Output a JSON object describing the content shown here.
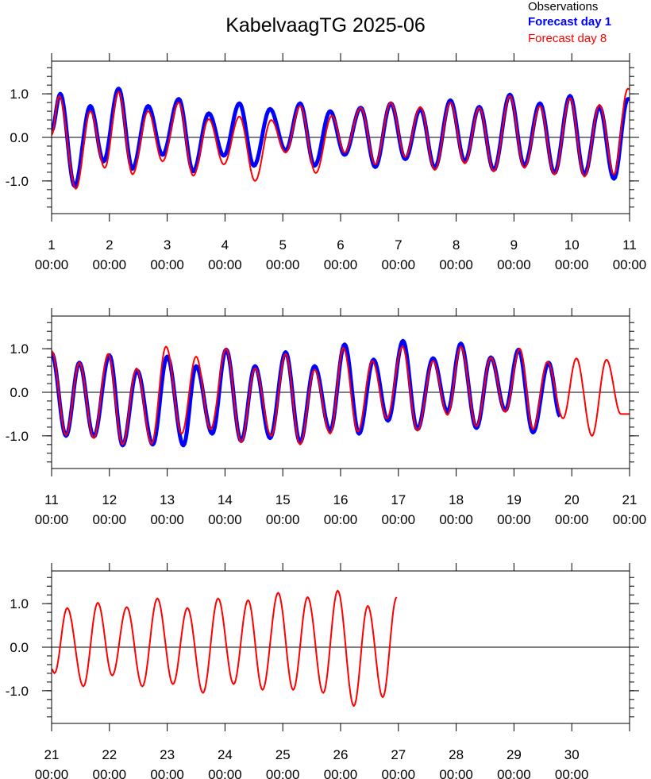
{
  "title": "KabelvaagTG 2025-06",
  "legend": [
    {
      "label": "Observations",
      "color": "#000000",
      "bold": false
    },
    {
      "label": "Forecast day 1",
      "color": "#0000ff",
      "bold": true
    },
    {
      "label": "Forecast day 8",
      "color": "#ff0000",
      "bold": false
    }
  ],
  "colors": {
    "observations": "#000000",
    "forecast_day1": "#0000ff",
    "forecast_day8": "#ff0000"
  },
  "chart_data": [
    {
      "type": "line",
      "x_unit": "day of month",
      "xlim": [
        1,
        11
      ],
      "ylim": [
        -1.75,
        1.75
      ],
      "yticks": [
        -1.0,
        0.0,
        1.0
      ],
      "ytick_labels": [
        "-1.0",
        "0.0",
        "1.0"
      ],
      "xtick_labels": [
        {
          "day": "1",
          "time": "00:00"
        },
        {
          "day": "2",
          "time": "00:00"
        },
        {
          "day": "3",
          "time": "00:00"
        },
        {
          "day": "4",
          "time": "00:00"
        },
        {
          "day": "5",
          "time": "00:00"
        },
        {
          "day": "6",
          "time": "00:00"
        },
        {
          "day": "7",
          "time": "00:00"
        },
        {
          "day": "8",
          "time": "00:00"
        },
        {
          "day": "9",
          "time": "00:00"
        },
        {
          "day": "10",
          "time": "00:00"
        },
        {
          "day": "11",
          "time": "00:00"
        }
      ],
      "series": [
        {
          "key": "forecast_day1",
          "peaks": [
            [
              1.0,
              0.15
            ],
            [
              1.15,
              1.0
            ],
            [
              1.4,
              -1.12
            ],
            [
              1.67,
              0.72
            ],
            [
              1.9,
              -0.55
            ],
            [
              2.16,
              1.12
            ],
            [
              2.4,
              -0.72
            ],
            [
              2.67,
              0.72
            ],
            [
              2.92,
              -0.4
            ],
            [
              3.2,
              0.88
            ],
            [
              3.45,
              -0.78
            ],
            [
              3.72,
              0.55
            ],
            [
              3.98,
              -0.42
            ],
            [
              4.25,
              0.78
            ],
            [
              4.5,
              -0.65
            ],
            [
              4.78,
              0.65
            ],
            [
              5.05,
              -0.3
            ],
            [
              5.3,
              0.78
            ],
            [
              5.55,
              -0.65
            ],
            [
              5.82,
              0.6
            ],
            [
              6.07,
              -0.4
            ],
            [
              6.35,
              0.68
            ],
            [
              6.6,
              -0.68
            ],
            [
              6.87,
              0.78
            ],
            [
              7.12,
              -0.5
            ],
            [
              7.38,
              0.65
            ],
            [
              7.63,
              -0.7
            ],
            [
              7.9,
              0.85
            ],
            [
              8.15,
              -0.55
            ],
            [
              8.4,
              0.7
            ],
            [
              8.65,
              -0.75
            ],
            [
              8.93,
              0.98
            ],
            [
              9.18,
              -0.65
            ],
            [
              9.45,
              0.78
            ],
            [
              9.7,
              -0.82
            ],
            [
              9.97,
              0.95
            ],
            [
              10.22,
              -0.85
            ],
            [
              10.48,
              0.7
            ],
            [
              10.73,
              -0.95
            ],
            [
              10.97,
              0.88
            ],
            [
              11.0,
              0.88
            ]
          ]
        },
        {
          "key": "forecast_day8",
          "peaks": [
            [
              1.0,
              0.05
            ],
            [
              1.13,
              0.95
            ],
            [
              1.42,
              -1.18
            ],
            [
              1.67,
              0.6
            ],
            [
              1.92,
              -0.7
            ],
            [
              2.16,
              1.05
            ],
            [
              2.4,
              -0.85
            ],
            [
              2.67,
              0.6
            ],
            [
              2.92,
              -0.55
            ],
            [
              3.2,
              0.8
            ],
            [
              3.45,
              -0.88
            ],
            [
              3.72,
              0.42
            ],
            [
              3.98,
              -0.62
            ],
            [
              4.25,
              0.48
            ],
            [
              4.52,
              -1.0
            ],
            [
              4.8,
              0.4
            ],
            [
              5.05,
              -0.35
            ],
            [
              5.3,
              0.72
            ],
            [
              5.57,
              -0.82
            ],
            [
              5.85,
              0.5
            ],
            [
              6.07,
              -0.35
            ],
            [
              6.35,
              0.68
            ],
            [
              6.6,
              -0.62
            ],
            [
              6.87,
              0.8
            ],
            [
              7.12,
              -0.45
            ],
            [
              7.38,
              0.7
            ],
            [
              7.63,
              -0.75
            ],
            [
              7.9,
              0.8
            ],
            [
              8.15,
              -0.6
            ],
            [
              8.4,
              0.68
            ],
            [
              8.65,
              -0.78
            ],
            [
              8.93,
              0.95
            ],
            [
              9.18,
              -0.7
            ],
            [
              9.45,
              0.72
            ],
            [
              9.7,
              -0.85
            ],
            [
              9.97,
              0.9
            ],
            [
              10.22,
              -0.9
            ],
            [
              10.48,
              0.75
            ],
            [
              10.73,
              -0.85
            ],
            [
              10.97,
              1.12
            ],
            [
              11.0,
              1.1
            ]
          ]
        }
      ]
    },
    {
      "type": "line",
      "x_unit": "day of month",
      "xlim": [
        11,
        21
      ],
      "ylim": [
        -1.75,
        1.75
      ],
      "yticks": [
        -1.0,
        0.0,
        1.0
      ],
      "ytick_labels": [
        "-1.0",
        "0.0",
        "1.0"
      ],
      "xtick_labels": [
        {
          "day": "11",
          "time": "00:00"
        },
        {
          "day": "12",
          "time": "00:00"
        },
        {
          "day": "13",
          "time": "00:00"
        },
        {
          "day": "14",
          "time": "00:00"
        },
        {
          "day": "15",
          "time": "00:00"
        },
        {
          "day": "16",
          "time": "00:00"
        },
        {
          "day": "17",
          "time": "00:00"
        },
        {
          "day": "18",
          "time": "00:00"
        },
        {
          "day": "19",
          "time": "00:00"
        },
        {
          "day": "20",
          "time": "00:00"
        },
        {
          "day": "21",
          "time": "00:00"
        }
      ],
      "series": [
        {
          "key": "forecast_day1",
          "peaks": [
            [
              11.0,
              0.9
            ],
            [
              11.25,
              -1.0
            ],
            [
              11.48,
              0.68
            ],
            [
              11.73,
              -1.02
            ],
            [
              12.0,
              0.85
            ],
            [
              12.23,
              -1.22
            ],
            [
              12.48,
              0.5
            ],
            [
              12.75,
              -1.2
            ],
            [
              13.0,
              0.82
            ],
            [
              13.28,
              -1.22
            ],
            [
              13.5,
              0.6
            ],
            [
              13.78,
              -0.95
            ],
            [
              14.02,
              0.98
            ],
            [
              14.28,
              -1.12
            ],
            [
              14.52,
              0.6
            ],
            [
              14.78,
              -1.05
            ],
            [
              15.05,
              0.92
            ],
            [
              15.3,
              -1.15
            ],
            [
              15.55,
              0.6
            ],
            [
              15.82,
              -0.88
            ],
            [
              16.07,
              1.1
            ],
            [
              16.32,
              -0.95
            ],
            [
              16.57,
              0.75
            ],
            [
              16.82,
              -0.65
            ],
            [
              17.08,
              1.18
            ],
            [
              17.33,
              -0.85
            ],
            [
              17.6,
              0.78
            ],
            [
              17.85,
              -0.45
            ],
            [
              18.08,
              1.12
            ],
            [
              18.35,
              -0.82
            ],
            [
              18.6,
              0.8
            ],
            [
              18.85,
              -0.42
            ],
            [
              19.08,
              0.98
            ],
            [
              19.33,
              -0.92
            ],
            [
              19.6,
              0.68
            ],
            [
              19.8,
              -0.55
            ]
          ]
        },
        {
          "key": "forecast_day8",
          "peaks": [
            [
              11.0,
              0.95
            ],
            [
              11.25,
              -0.98
            ],
            [
              11.48,
              0.68
            ],
            [
              11.73,
              -1.05
            ],
            [
              11.98,
              0.88
            ],
            [
              12.23,
              -1.2
            ],
            [
              12.47,
              0.55
            ],
            [
              12.73,
              -1.18
            ],
            [
              12.98,
              1.05
            ],
            [
              13.25,
              -0.95
            ],
            [
              13.5,
              0.82
            ],
            [
              13.75,
              -0.85
            ],
            [
              14.02,
              1.0
            ],
            [
              14.28,
              -1.15
            ],
            [
              14.52,
              0.55
            ],
            [
              14.8,
              -1.0
            ],
            [
              15.05,
              0.88
            ],
            [
              15.3,
              -1.2
            ],
            [
              15.55,
              0.52
            ],
            [
              15.82,
              -0.95
            ],
            [
              16.05,
              1.02
            ],
            [
              16.3,
              -0.9
            ],
            [
              16.55,
              0.72
            ],
            [
              16.8,
              -0.6
            ],
            [
              17.07,
              1.05
            ],
            [
              17.33,
              -0.88
            ],
            [
              17.6,
              0.72
            ],
            [
              17.85,
              -0.52
            ],
            [
              18.08,
              1.05
            ],
            [
              18.35,
              -0.78
            ],
            [
              18.6,
              0.8
            ],
            [
              18.85,
              -0.45
            ],
            [
              19.1,
              1.0
            ],
            [
              19.33,
              -0.85
            ],
            [
              19.58,
              0.7
            ],
            [
              19.85,
              -0.6
            ],
            [
              20.08,
              0.78
            ],
            [
              20.35,
              -1.0
            ],
            [
              20.6,
              0.75
            ],
            [
              20.85,
              -0.5
            ],
            [
              21.0,
              -0.5
            ]
          ]
        }
      ]
    },
    {
      "type": "line",
      "x_unit": "day of month",
      "xlim": [
        21,
        31
      ],
      "ylim": [
        -1.75,
        1.75
      ],
      "yticks": [
        -1.0,
        0.0,
        1.0
      ],
      "ytick_labels": [
        "-1.0",
        "0.0",
        "1.0"
      ],
      "xtick_labels": [
        {
          "day": "21",
          "time": "00:00"
        },
        {
          "day": "22",
          "time": "00:00"
        },
        {
          "day": "23",
          "time": "00:00"
        },
        {
          "day": "24",
          "time": "00:00"
        },
        {
          "day": "25",
          "time": "00:00"
        },
        {
          "day": "26",
          "time": "00:00"
        },
        {
          "day": "27",
          "time": "00:00"
        },
        {
          "day": "28",
          "time": "00:00"
        },
        {
          "day": "29",
          "time": "00:00"
        },
        {
          "day": "30",
          "time": "00:00"
        }
      ],
      "series": [
        {
          "key": "forecast_day8",
          "peaks": [
            [
              21.0,
              -0.5
            ],
            [
              21.05,
              -0.6
            ],
            [
              21.27,
              0.9
            ],
            [
              21.55,
              -0.9
            ],
            [
              21.8,
              1.02
            ],
            [
              22.05,
              -0.65
            ],
            [
              22.3,
              0.92
            ],
            [
              22.57,
              -0.9
            ],
            [
              22.83,
              1.12
            ],
            [
              23.1,
              -0.85
            ],
            [
              23.35,
              0.9
            ],
            [
              23.62,
              -1.05
            ],
            [
              23.88,
              1.12
            ],
            [
              24.15,
              -0.85
            ],
            [
              24.4,
              1.08
            ],
            [
              24.65,
              -0.98
            ],
            [
              24.92,
              1.25
            ],
            [
              25.18,
              -0.98
            ],
            [
              25.43,
              1.15
            ],
            [
              25.7,
              -1.05
            ],
            [
              25.95,
              1.3
            ],
            [
              26.23,
              -1.35
            ],
            [
              26.47,
              0.95
            ],
            [
              26.73,
              -1.15
            ],
            [
              26.97,
              1.15
            ]
          ]
        }
      ]
    }
  ]
}
